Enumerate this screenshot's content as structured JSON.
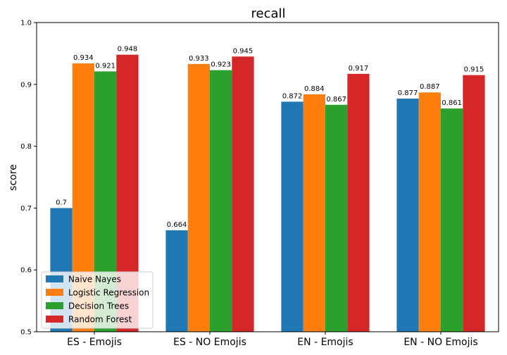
{
  "chart_data": {
    "type": "bar",
    "title": "recall",
    "xlabel": "",
    "ylabel": "score",
    "ylim": [
      0.5,
      1.0
    ],
    "yticks": [
      "0.5",
      "0.6",
      "0.7",
      "0.8",
      "0.9",
      "1.0"
    ],
    "categories": [
      "ES - Emojis",
      "ES - NO Emojis",
      "EN - Emojis",
      "EN - NO Emojis"
    ],
    "series": [
      {
        "name": "Naive Nayes",
        "color": "#1f77b4",
        "values": [
          0.7,
          0.664,
          0.872,
          0.877
        ],
        "labels": [
          "0.7",
          "0.664",
          "0.872",
          "0.877"
        ]
      },
      {
        "name": "Logistic Regression",
        "color": "#ff7f0e",
        "values": [
          0.934,
          0.933,
          0.884,
          0.887
        ],
        "labels": [
          "0.934",
          "0.933",
          "0.884",
          "0.887"
        ]
      },
      {
        "name": "Decision Trees",
        "color": "#2ca02c",
        "values": [
          0.921,
          0.923,
          0.867,
          0.861
        ],
        "labels": [
          "0.921",
          "0.923",
          "0.867",
          "0.861"
        ]
      },
      {
        "name": "Random Forest",
        "color": "#d62728",
        "values": [
          0.948,
          0.945,
          0.917,
          0.915
        ],
        "labels": [
          "0.948",
          "0.945",
          "0.917",
          "0.915"
        ]
      }
    ],
    "grid": false,
    "legend_position": "lower-left"
  }
}
